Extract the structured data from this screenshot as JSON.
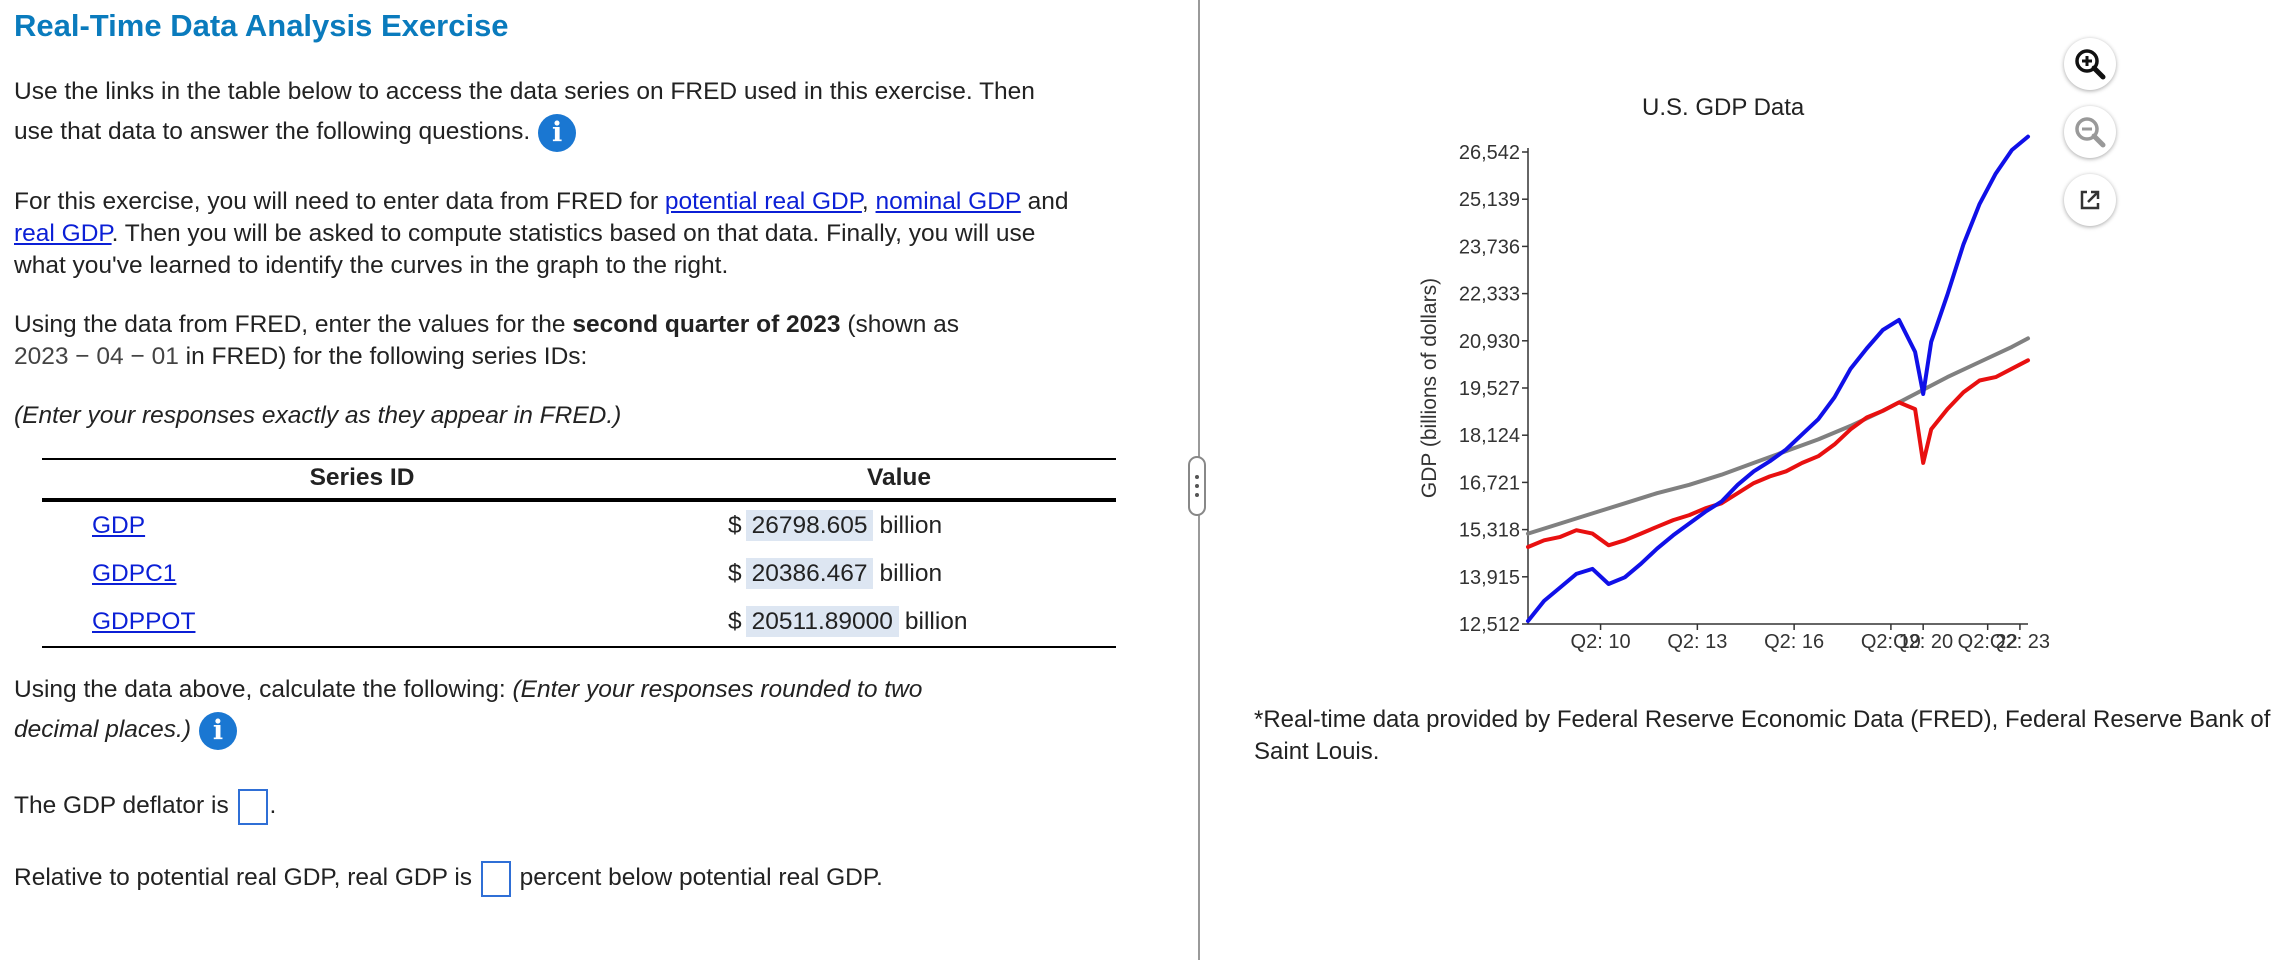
{
  "page": {
    "title": "Real-Time Data Analysis Exercise",
    "intro_line1": "Use the links in the table below to access the data series on FRED used in this exercise.  Then",
    "intro_line2": "use that data to answer the following questions.",
    "para2_a": "For this exercise, you will need to enter data from FRED for ",
    "link_potential": "potential real GDP",
    "para2_comma": ", ",
    "link_nominal": "nominal GDP",
    "para2_and": " and",
    "link_real": "real GDP",
    "para2_b": ". Then you will be asked to compute statistics based on that data. Finally, you will use",
    "para2_c": "what you've learned to identify the curves in the graph to the right.",
    "para3_a": "Using the data from FRED, enter the values for the ",
    "para3_bold": "second quarter of 2023",
    "para3_b": " (shown as",
    "para3_date": "2023 − 04 − 01",
    "para3_c": " in FRED) for the following series IDs:",
    "para4": "(Enter your responses exactly as they appear in FRED.)",
    "calc_a": "Using the data above, calculate the following: ",
    "calc_italic1": "(Enter your responses rounded to two",
    "calc_italic2": "decimal places.)",
    "q1_a": "The GDP deflator is ",
    "q1_b": ".",
    "q2_a": "Relative to potential real GDP, real GDP is ",
    "q2_b": " percent below potential real GDP."
  },
  "table": {
    "headers": [
      "Series ID",
      "Value"
    ],
    "rows": [
      {
        "id": "GDP",
        "dollar": "$",
        "value": "26798.605",
        "unit": "billion"
      },
      {
        "id": "GDPC1",
        "dollar": "$",
        "value": "20386.467",
        "unit": "billion"
      },
      {
        "id": "GDPPOT",
        "dollar": "$",
        "value": "20511.89000",
        "unit": "billion"
      }
    ]
  },
  "note": "*Real-time data provided by Federal Reserve Economic Data (FRED), Federal Reserve Bank of Saint Louis.",
  "colors": {
    "title": "#0a7bbd",
    "link": "#0b1fd6",
    "nominal": "#1010e8",
    "real": "#e81010",
    "potential": "#808080"
  },
  "chart_data": {
    "type": "line",
    "title": "U.S. GDP Data",
    "ylabel": "GDP (billions of dollars)",
    "xlabel": "",
    "yticks": [
      "12,512",
      "13,915",
      "15,318",
      "16,721",
      "18,124",
      "19,527",
      "20,930",
      "22,333",
      "23,736",
      "25,139",
      "26,542"
    ],
    "ylim": [
      12512,
      26542
    ],
    "xlim": [
      2008.0,
      2023.5
    ],
    "xticks": [
      {
        "x": 2010.25,
        "label": "Q2: 10"
      },
      {
        "x": 2013.25,
        "label": "Q2: 13"
      },
      {
        "x": 2016.25,
        "label": "Q2: 16"
      },
      {
        "x": 2019.25,
        "label": "Q2: 19"
      },
      {
        "x": 2020.25,
        "label": "Q2: 20"
      },
      {
        "x": 2022.25,
        "label": "Q2: 22"
      },
      {
        "x": 2023.25,
        "label": "Q2: 23"
      }
    ],
    "series": [
      {
        "name": "",
        "color": "#808080",
        "points": [
          [
            2008.0,
            15200
          ],
          [
            2009.0,
            15500
          ],
          [
            2010.0,
            15800
          ],
          [
            2011.0,
            16100
          ],
          [
            2012.0,
            16400
          ],
          [
            2013.0,
            16650
          ],
          [
            2014.0,
            16950
          ],
          [
            2015.0,
            17300
          ],
          [
            2016.0,
            17650
          ],
          [
            2017.0,
            18000
          ],
          [
            2018.0,
            18400
          ],
          [
            2019.0,
            18850
          ],
          [
            2020.0,
            19350
          ],
          [
            2021.0,
            19850
          ],
          [
            2022.0,
            20300
          ],
          [
            2023.0,
            20750
          ],
          [
            2023.5,
            21000
          ]
        ]
      },
      {
        "name": "",
        "color": "#e81010",
        "points": [
          [
            2008.0,
            14800
          ],
          [
            2008.5,
            15000
          ],
          [
            2009.0,
            15100
          ],
          [
            2009.5,
            15300
          ],
          [
            2010.0,
            15200
          ],
          [
            2010.5,
            14850
          ],
          [
            2011.0,
            15000
          ],
          [
            2011.5,
            15200
          ],
          [
            2012.0,
            15400
          ],
          [
            2012.5,
            15600
          ],
          [
            2013.0,
            15750
          ],
          [
            2013.5,
            15950
          ],
          [
            2014.0,
            16100
          ],
          [
            2014.5,
            16400
          ],
          [
            2015.0,
            16700
          ],
          [
            2015.5,
            16900
          ],
          [
            2016.0,
            17050
          ],
          [
            2016.5,
            17300
          ],
          [
            2017.0,
            17500
          ],
          [
            2017.5,
            17850
          ],
          [
            2018.0,
            18300
          ],
          [
            2018.5,
            18650
          ],
          [
            2019.0,
            18850
          ],
          [
            2019.5,
            19100
          ],
          [
            2020.0,
            18900
          ],
          [
            2020.25,
            17300
          ],
          [
            2020.5,
            18300
          ],
          [
            2021.0,
            18900
          ],
          [
            2021.5,
            19400
          ],
          [
            2022.0,
            19750
          ],
          [
            2022.5,
            19850
          ],
          [
            2023.0,
            20100
          ],
          [
            2023.5,
            20350
          ]
        ]
      },
      {
        "name": "",
        "color": "#1010e8",
        "points": [
          [
            2008.0,
            12600
          ],
          [
            2008.5,
            13200
          ],
          [
            2009.0,
            13600
          ],
          [
            2009.5,
            14000
          ],
          [
            2010.0,
            14150
          ],
          [
            2010.5,
            13700
          ],
          [
            2011.0,
            13900
          ],
          [
            2011.5,
            14300
          ],
          [
            2012.0,
            14750
          ],
          [
            2012.5,
            15150
          ],
          [
            2013.0,
            15500
          ],
          [
            2013.5,
            15850
          ],
          [
            2014.0,
            16150
          ],
          [
            2014.5,
            16650
          ],
          [
            2015.0,
            17050
          ],
          [
            2015.5,
            17350
          ],
          [
            2016.0,
            17700
          ],
          [
            2016.5,
            18150
          ],
          [
            2017.0,
            18600
          ],
          [
            2017.5,
            19250
          ],
          [
            2018.0,
            20100
          ],
          [
            2018.5,
            20700
          ],
          [
            2019.0,
            21250
          ],
          [
            2019.5,
            21550
          ],
          [
            2020.0,
            20600
          ],
          [
            2020.25,
            19350
          ],
          [
            2020.5,
            20900
          ],
          [
            2021.0,
            22300
          ],
          [
            2021.5,
            23800
          ],
          [
            2022.0,
            25000
          ],
          [
            2022.5,
            25900
          ],
          [
            2023.0,
            26600
          ],
          [
            2023.5,
            27000
          ]
        ]
      }
    ],
    "grid": false,
    "legend": "none"
  },
  "icons": {
    "info": "info-icon",
    "zoom_in": "zoom-in-icon",
    "zoom_out": "zoom-out-icon",
    "popout": "external-link-icon"
  }
}
